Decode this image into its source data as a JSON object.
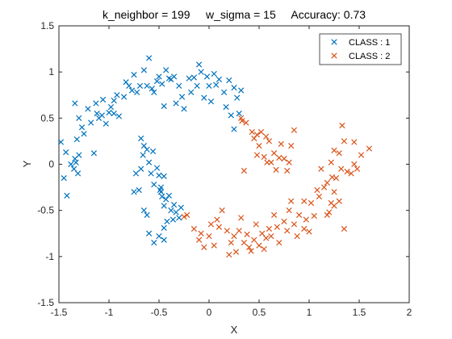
{
  "chart_data": {
    "type": "scatter",
    "title": "k_neighbor = 199     w_sigma = 15     Accuracy: 0.73",
    "xlabel": "X",
    "ylabel": "Y",
    "xlim": [
      -1.5,
      2
    ],
    "ylim": [
      -1.5,
      1.5
    ],
    "xticks": [
      "-1.5",
      "-1",
      "-0.5",
      "0",
      "0.5",
      "1",
      "1.5",
      "2"
    ],
    "yticks": [
      "-1.5",
      "-1",
      "-0.5",
      "0",
      "0.5",
      "1",
      "1.5"
    ],
    "grid": false,
    "legend_position": "top-right",
    "marker": "x",
    "series": [
      {
        "name": "CLASS : 1",
        "color": "#0072BD",
        "points": [
          [
            -1.48,
            0.24
          ],
          [
            -1.45,
            -0.15
          ],
          [
            -1.42,
            -0.34
          ],
          [
            -1.43,
            0.13
          ],
          [
            -1.38,
            0.0
          ],
          [
            -1.35,
            -0.05
          ],
          [
            -1.34,
            0.06
          ],
          [
            -1.33,
            0.02
          ],
          [
            -1.31,
            -0.1
          ],
          [
            -1.3,
            0.1
          ],
          [
            -1.32,
            0.27
          ],
          [
            -1.3,
            0.5
          ],
          [
            -1.34,
            0.66
          ],
          [
            -1.27,
            0.4
          ],
          [
            -1.25,
            0.33
          ],
          [
            -1.21,
            0.6
          ],
          [
            -1.18,
            0.45
          ],
          [
            -1.15,
            0.12
          ],
          [
            -1.13,
            0.66
          ],
          [
            -1.12,
            0.55
          ],
          [
            -1.1,
            0.5
          ],
          [
            -1.07,
            0.53
          ],
          [
            -1.06,
            0.7
          ],
          [
            -1.03,
            0.44
          ],
          [
            -1.0,
            0.56
          ],
          [
            -0.98,
            0.62
          ],
          [
            -0.95,
            0.55
          ],
          [
            -0.95,
            0.69
          ],
          [
            -0.92,
            0.75
          ],
          [
            -0.9,
            0.52
          ],
          [
            -0.85,
            0.73
          ],
          [
            -0.83,
            0.89
          ],
          [
            -0.8,
            0.85
          ],
          [
            -0.77,
            0.8
          ],
          [
            -0.75,
            0.97
          ],
          [
            -0.72,
            0.78
          ],
          [
            -0.69,
            0.85
          ],
          [
            -0.65,
            1.02
          ],
          [
            -0.62,
            0.85
          ],
          [
            -0.6,
            1.15
          ],
          [
            -0.57,
            0.82
          ],
          [
            -0.55,
            0.78
          ],
          [
            -0.52,
            0.9
          ],
          [
            -0.5,
            0.95
          ],
          [
            -0.47,
            0.87
          ],
          [
            -0.45,
            0.63
          ],
          [
            -0.43,
            1.02
          ],
          [
            -0.4,
            0.93
          ],
          [
            -0.38,
            0.92
          ],
          [
            -0.35,
            0.95
          ],
          [
            -0.33,
            0.66
          ],
          [
            -0.3,
            0.85
          ],
          [
            -0.27,
            0.73
          ],
          [
            -0.25,
            0.6
          ],
          [
            -0.2,
            0.93
          ],
          [
            -0.18,
            0.78
          ],
          [
            -0.15,
            0.94
          ],
          [
            -0.12,
            0.85
          ],
          [
            -0.1,
            1.08
          ],
          [
            -0.08,
            1.0
          ],
          [
            -0.05,
            0.72
          ],
          [
            -0.02,
            0.95
          ],
          [
            0.0,
            0.85
          ],
          [
            0.02,
            0.68
          ],
          [
            0.05,
            0.98
          ],
          [
            0.07,
            0.86
          ],
          [
            0.1,
            0.92
          ],
          [
            0.15,
            0.78
          ],
          [
            0.17,
            0.62
          ],
          [
            0.2,
            0.91
          ],
          [
            0.22,
            0.53
          ],
          [
            0.25,
            0.83
          ],
          [
            0.28,
            0.72
          ],
          [
            0.3,
            0.55
          ],
          [
            0.32,
            0.8
          ],
          [
            0.25,
            0.38
          ],
          [
            -0.68,
            0.28
          ],
          [
            -0.66,
            0.1
          ],
          [
            -0.65,
            0.2
          ],
          [
            -0.62,
            0.16
          ],
          [
            -0.6,
            0.02
          ],
          [
            -0.58,
            -0.1
          ],
          [
            -0.56,
            0.14
          ],
          [
            -0.55,
            -0.22
          ],
          [
            -0.52,
            -0.04
          ],
          [
            -0.5,
            -0.12
          ],
          [
            -0.49,
            -0.28
          ],
          [
            -0.47,
            -0.35
          ],
          [
            -0.45,
            -0.45
          ],
          [
            -0.43,
            -0.38
          ],
          [
            -0.4,
            -0.34
          ],
          [
            -0.38,
            -0.5
          ],
          [
            -0.36,
            -0.6
          ],
          [
            -0.35,
            -0.44
          ],
          [
            -0.33,
            -0.52
          ],
          [
            -0.3,
            -0.58
          ],
          [
            -0.28,
            -0.47
          ],
          [
            -0.6,
            -0.75
          ],
          [
            -0.55,
            -0.85
          ],
          [
            -0.5,
            -0.78
          ],
          [
            -0.45,
            -0.69
          ],
          [
            -0.42,
            -0.62
          ],
          [
            -0.62,
            -0.55
          ],
          [
            -0.65,
            -0.5
          ],
          [
            -0.48,
            -0.25
          ],
          [
            -0.45,
            -0.13
          ],
          [
            -0.7,
            -0.28
          ],
          [
            -0.73,
            -0.1
          ],
          [
            -0.75,
            -0.3
          ],
          [
            -0.68,
            -0.05
          ],
          [
            -0.45,
            -0.82
          ],
          [
            -0.48,
            -0.3
          ]
        ]
      },
      {
        "name": "CLASS : 2",
        "color": "#D95319",
        "points": [
          [
            -0.25,
            -0.57
          ],
          [
            -0.22,
            -0.55
          ],
          [
            -0.15,
            -0.7
          ],
          [
            -0.1,
            -0.82
          ],
          [
            -0.08,
            -0.75
          ],
          [
            -0.05,
            -0.9
          ],
          [
            0.0,
            -0.78
          ],
          [
            0.02,
            -0.65
          ],
          [
            0.05,
            -0.88
          ],
          [
            0.08,
            -0.6
          ],
          [
            0.1,
            -0.68
          ],
          [
            0.13,
            -0.5
          ],
          [
            0.18,
            -0.72
          ],
          [
            0.2,
            -0.98
          ],
          [
            0.22,
            -0.85
          ],
          [
            0.25,
            -0.78
          ],
          [
            0.27,
            -0.95
          ],
          [
            0.3,
            -0.72
          ],
          [
            0.32,
            -0.58
          ],
          [
            0.35,
            -0.85
          ],
          [
            0.38,
            -0.76
          ],
          [
            0.4,
            -0.9
          ],
          [
            0.42,
            -0.94
          ],
          [
            0.45,
            -0.82
          ],
          [
            0.47,
            -0.65
          ],
          [
            0.5,
            -0.88
          ],
          [
            0.53,
            -0.75
          ],
          [
            0.55,
            -0.92
          ],
          [
            0.57,
            -0.8
          ],
          [
            0.6,
            -0.7
          ],
          [
            0.62,
            -0.78
          ],
          [
            0.65,
            -0.55
          ],
          [
            0.68,
            -0.68
          ],
          [
            0.7,
            -0.85
          ],
          [
            0.75,
            -0.62
          ],
          [
            0.78,
            -0.72
          ],
          [
            0.8,
            -0.5
          ],
          [
            0.82,
            -0.4
          ],
          [
            0.85,
            -0.65
          ],
          [
            0.88,
            -0.78
          ],
          [
            0.9,
            -0.55
          ],
          [
            0.95,
            -0.7
          ],
          [
            0.97,
            -0.6
          ],
          [
            1.0,
            -0.73
          ],
          [
            1.02,
            -0.42
          ],
          [
            1.05,
            -0.56
          ],
          [
            1.08,
            -0.28
          ],
          [
            1.1,
            -0.35
          ],
          [
            1.12,
            -0.05
          ],
          [
            1.15,
            -0.25
          ],
          [
            1.18,
            -0.2
          ],
          [
            1.2,
            -0.52
          ],
          [
            1.22,
            -0.42
          ],
          [
            1.23,
            -0.14
          ],
          [
            1.25,
            -0.3
          ],
          [
            1.27,
            -0.15
          ],
          [
            1.3,
            0.12
          ],
          [
            1.32,
            -0.05
          ],
          [
            1.33,
            0.42
          ],
          [
            1.35,
            0.25
          ],
          [
            1.38,
            -0.08
          ],
          [
            1.42,
            -0.1
          ],
          [
            1.45,
            0.0
          ],
          [
            1.48,
            -0.05
          ],
          [
            1.52,
            0.1
          ],
          [
            1.6,
            0.17
          ],
          [
            1.45,
            0.24
          ],
          [
            1.25,
            -0.45
          ],
          [
            1.3,
            -0.4
          ],
          [
            1.35,
            -0.7
          ],
          [
            1.18,
            -0.55
          ],
          [
            0.95,
            -0.4
          ],
          [
            1.22,
            0.02
          ],
          [
            1.25,
            0.15
          ],
          [
            0.33,
            0.47
          ],
          [
            0.37,
            0.45
          ],
          [
            0.43,
            0.35
          ],
          [
            0.45,
            0.28
          ],
          [
            0.48,
            0.32
          ],
          [
            0.5,
            0.2
          ],
          [
            0.52,
            0.35
          ],
          [
            0.55,
            0.08
          ],
          [
            0.57,
            0.3
          ],
          [
            0.6,
            0.25
          ],
          [
            0.62,
            0.02
          ],
          [
            0.65,
            0.12
          ],
          [
            0.67,
            -0.06
          ],
          [
            0.7,
            0.07
          ],
          [
            0.72,
            0.22
          ],
          [
            0.75,
            0.06
          ],
          [
            0.78,
            -0.07
          ],
          [
            0.8,
            0.02
          ],
          [
            0.82,
            0.2
          ],
          [
            0.85,
            0.37
          ],
          [
            0.35,
            -0.07
          ],
          [
            0.48,
            0.1
          ],
          [
            0.58,
            0.02
          ],
          [
            0.32,
            0.5
          ]
        ]
      }
    ]
  }
}
